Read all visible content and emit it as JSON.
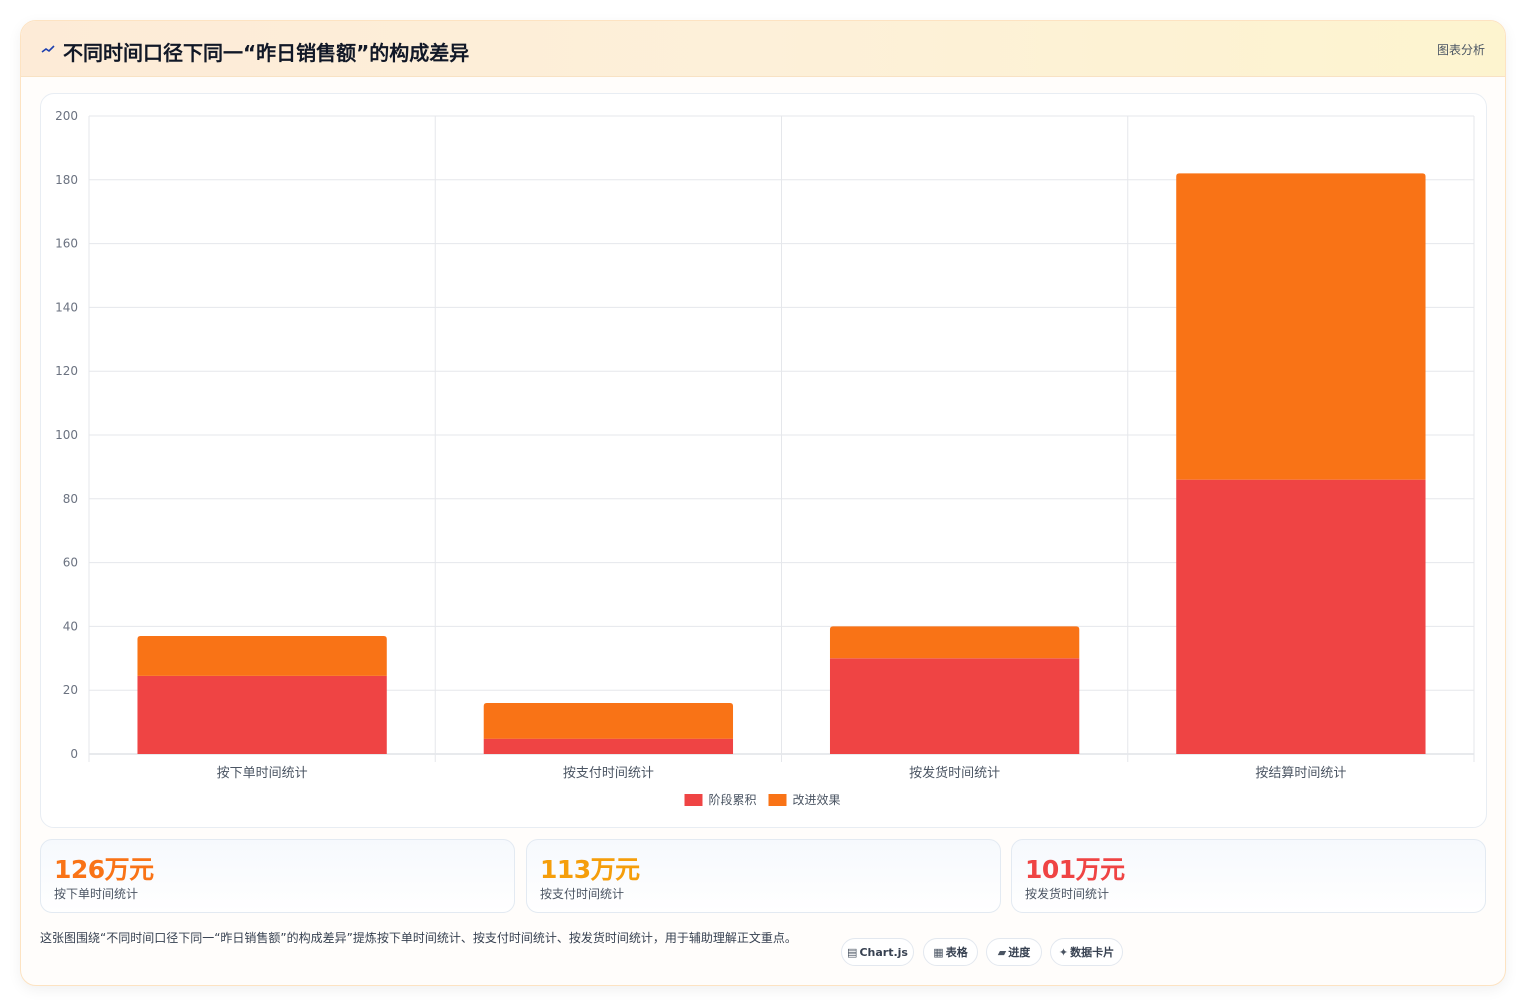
{
  "header": {
    "title": "不同时间口径下同一“昨日销售额”的构成差异",
    "tag": "图表分析",
    "title_icon": "chart-line-icon"
  },
  "chart_data": {
    "type": "bar",
    "stacked": true,
    "categories": [
      "按下单时间统计",
      "按支付时间统计",
      "按发货时间统计",
      "按结算时间统计"
    ],
    "series": [
      {
        "name": "阶段累积",
        "color": "#ef4444",
        "values": [
          24.5,
          4.8,
          30,
          86
        ]
      },
      {
        "name": "改进效果",
        "color": "#f97316",
        "values": [
          12.5,
          11.2,
          10,
          96
        ]
      }
    ],
    "ylim": [
      0,
      200
    ],
    "yticks": [
      0,
      20,
      40,
      60,
      80,
      100,
      120,
      140,
      160,
      180,
      200
    ],
    "grid": true,
    "legend": "bottom"
  },
  "stats": [
    {
      "value": "126万元",
      "label": "按下单时间统计",
      "color": "#f97316"
    },
    {
      "value": "113万元",
      "label": "按支付时间统计",
      "color": "#f59e0b"
    },
    {
      "value": "101万元",
      "label": "按发货时间统计",
      "color": "#ef4444"
    }
  ],
  "description": "这张图围绕“不同时间口径下同一“昨日销售额”的构成差异”提炼按下单时间统计、按支付时间统计、按发货时间统计，用于辅助理解正文重点。",
  "chips": [
    {
      "icon": "▤",
      "label": "Chart.js"
    },
    {
      "icon": "▦",
      "label": "表格"
    },
    {
      "icon": "▰",
      "label": "进度"
    },
    {
      "icon": "✦",
      "label": "数据卡片"
    }
  ]
}
